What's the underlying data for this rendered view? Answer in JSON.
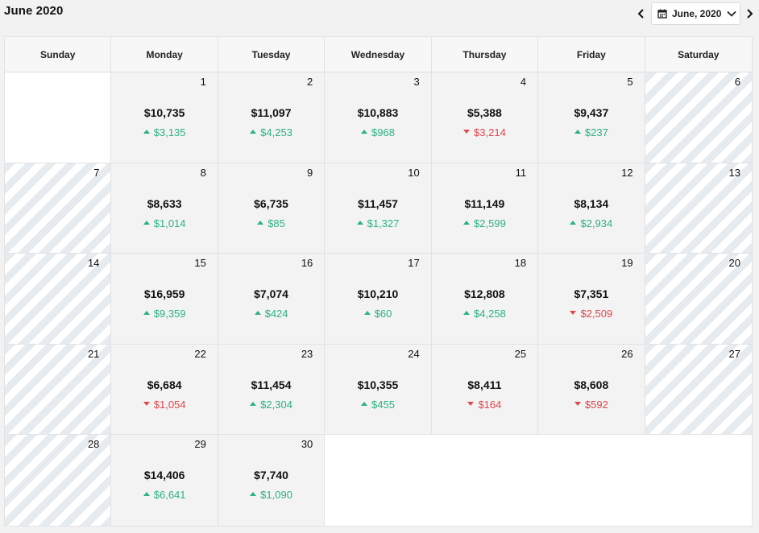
{
  "header": {
    "title": "June 2020",
    "picker_label": "June, 2020"
  },
  "colors": {
    "up": "#2bb27e",
    "down": "#e0474c"
  },
  "day_headers": [
    "Sunday",
    "Monday",
    "Tuesday",
    "Wednesday",
    "Thursday",
    "Friday",
    "Saturday"
  ],
  "weeks": [
    [
      {
        "type": "empty"
      },
      {
        "type": "weekday",
        "day": "1",
        "amount": "$10,735",
        "change": "$3,135",
        "dir": "up"
      },
      {
        "type": "weekday",
        "day": "2",
        "amount": "$11,097",
        "change": "$4,253",
        "dir": "up"
      },
      {
        "type": "weekday",
        "day": "3",
        "amount": "$10,883",
        "change": "$968",
        "dir": "up"
      },
      {
        "type": "weekday",
        "day": "4",
        "amount": "$5,388",
        "change": "$3,214",
        "dir": "down"
      },
      {
        "type": "weekday",
        "day": "5",
        "amount": "$9,437",
        "change": "$237",
        "dir": "up"
      },
      {
        "type": "weekend",
        "day": "6"
      }
    ],
    [
      {
        "type": "weekend",
        "day": "7"
      },
      {
        "type": "weekday",
        "day": "8",
        "amount": "$8,633",
        "change": "$1,014",
        "dir": "up"
      },
      {
        "type": "weekday",
        "day": "9",
        "amount": "$6,735",
        "change": "$85",
        "dir": "up"
      },
      {
        "type": "weekday",
        "day": "10",
        "amount": "$11,457",
        "change": "$1,327",
        "dir": "up"
      },
      {
        "type": "weekday",
        "day": "11",
        "amount": "$11,149",
        "change": "$2,599",
        "dir": "up"
      },
      {
        "type": "weekday",
        "day": "12",
        "amount": "$8,134",
        "change": "$2,934",
        "dir": "up"
      },
      {
        "type": "weekend",
        "day": "13"
      }
    ],
    [
      {
        "type": "weekend",
        "day": "14"
      },
      {
        "type": "weekday",
        "day": "15",
        "amount": "$16,959",
        "change": "$9,359",
        "dir": "up"
      },
      {
        "type": "weekday",
        "day": "16",
        "amount": "$7,074",
        "change": "$424",
        "dir": "up"
      },
      {
        "type": "weekday",
        "day": "17",
        "amount": "$10,210",
        "change": "$60",
        "dir": "up"
      },
      {
        "type": "weekday",
        "day": "18",
        "amount": "$12,808",
        "change": "$4,258",
        "dir": "up"
      },
      {
        "type": "weekday",
        "day": "19",
        "amount": "$7,351",
        "change": "$2,509",
        "dir": "down"
      },
      {
        "type": "weekend",
        "day": "20"
      }
    ],
    [
      {
        "type": "weekend",
        "day": "21"
      },
      {
        "type": "weekday",
        "day": "22",
        "amount": "$6,684",
        "change": "$1,054",
        "dir": "down"
      },
      {
        "type": "weekday",
        "day": "23",
        "amount": "$11,454",
        "change": "$2,304",
        "dir": "up"
      },
      {
        "type": "weekday",
        "day": "24",
        "amount": "$10,355",
        "change": "$455",
        "dir": "up"
      },
      {
        "type": "weekday",
        "day": "25",
        "amount": "$8,411",
        "change": "$164",
        "dir": "down"
      },
      {
        "type": "weekday",
        "day": "26",
        "amount": "$8,608",
        "change": "$592",
        "dir": "down"
      },
      {
        "type": "weekend",
        "day": "27"
      }
    ],
    [
      {
        "type": "weekend",
        "day": "28"
      },
      {
        "type": "weekday",
        "day": "29",
        "amount": "$14,406",
        "change": "$6,641",
        "dir": "up"
      },
      {
        "type": "weekday",
        "day": "30",
        "amount": "$7,740",
        "change": "$1,090",
        "dir": "up"
      },
      {
        "type": "after"
      },
      {
        "type": "after"
      },
      {
        "type": "after"
      },
      {
        "type": "after"
      }
    ]
  ]
}
